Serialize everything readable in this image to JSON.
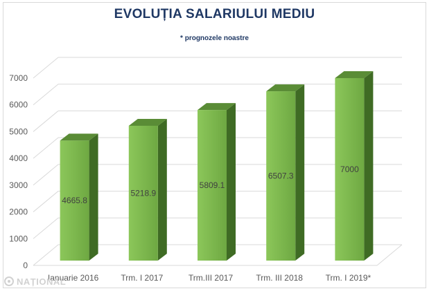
{
  "chart_data": {
    "type": "bar",
    "title": "EVOLUȚIA SALARIULUI MEDIU",
    "subtitle": "* prognozele noastre",
    "categories": [
      "Ianuarie 2016",
      "Trm. I 2017",
      "Trm.III 2017",
      "Trm. III 2018",
      "Trm. I 2019*"
    ],
    "values": [
      4665.8,
      5218.9,
      5809.1,
      6507.3,
      7000
    ],
    "value_labels": [
      "4665.8",
      "5218.9",
      "5809.1",
      "6507.3",
      "7000"
    ],
    "ylim": [
      0,
      7000
    ],
    "yticks": [
      0,
      1000,
      2000,
      3000,
      4000,
      5000,
      6000,
      7000
    ],
    "grid": true,
    "style": "3d-bar",
    "colors": {
      "bar_front": "#7db84c",
      "bar_front_light": "#8cc75a",
      "bar_side": "#3f6b24",
      "bar_top": "#5a8c36",
      "grid": "#d9d9d9",
      "axis_text": "#595959",
      "title": "#1f3864"
    }
  },
  "watermark": {
    "text": "NAȚIONAL",
    "icon": "national-logo-icon"
  }
}
